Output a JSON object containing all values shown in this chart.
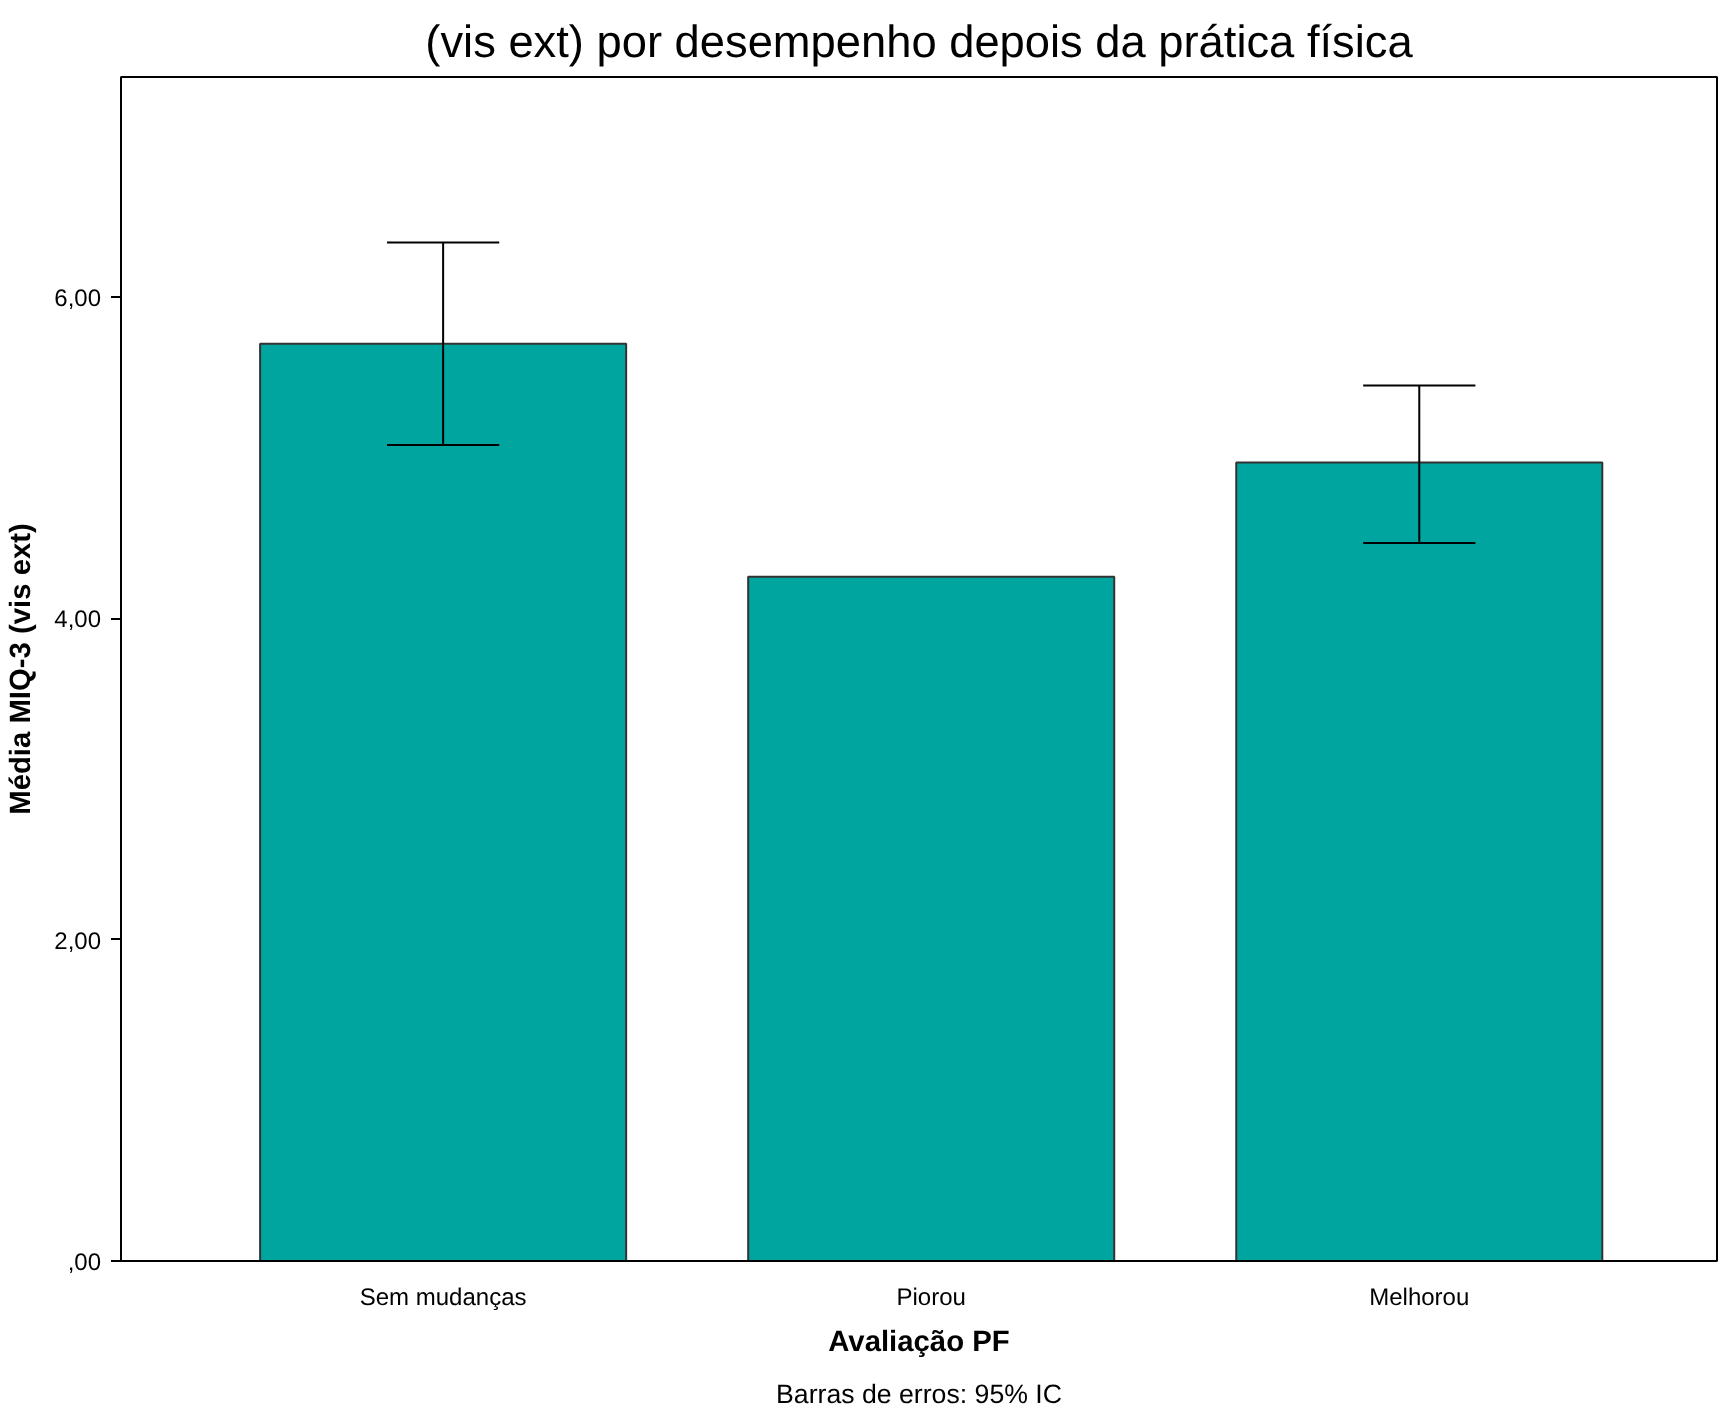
{
  "chart_data": {
    "type": "bar",
    "title": "(vis ext) por desempenho depois da prática física",
    "xlabel": "Avaliação PF",
    "ylabel": "Média MIQ-3 (vis ext)",
    "categories": [
      "Sem mudanças",
      "Piorou",
      "Melhorou"
    ],
    "values": [
      5.71,
      4.26,
      4.97
    ],
    "errors": [
      [
        5.08,
        6.34
      ],
      null,
      [
        4.47,
        5.45
      ]
    ],
    "color": "#00a5a0",
    "ylim": [
      0,
      7.37
    ],
    "yticks": [
      {
        "value": 0,
        "label": ",00"
      },
      {
        "value": 2,
        "label": "2,00"
      },
      {
        "value": 4,
        "label": "4,00"
      },
      {
        "value": 6,
        "label": "6,00"
      }
    ],
    "grid": false,
    "annotations": [
      "Barras de erros: 95% IC"
    ]
  }
}
